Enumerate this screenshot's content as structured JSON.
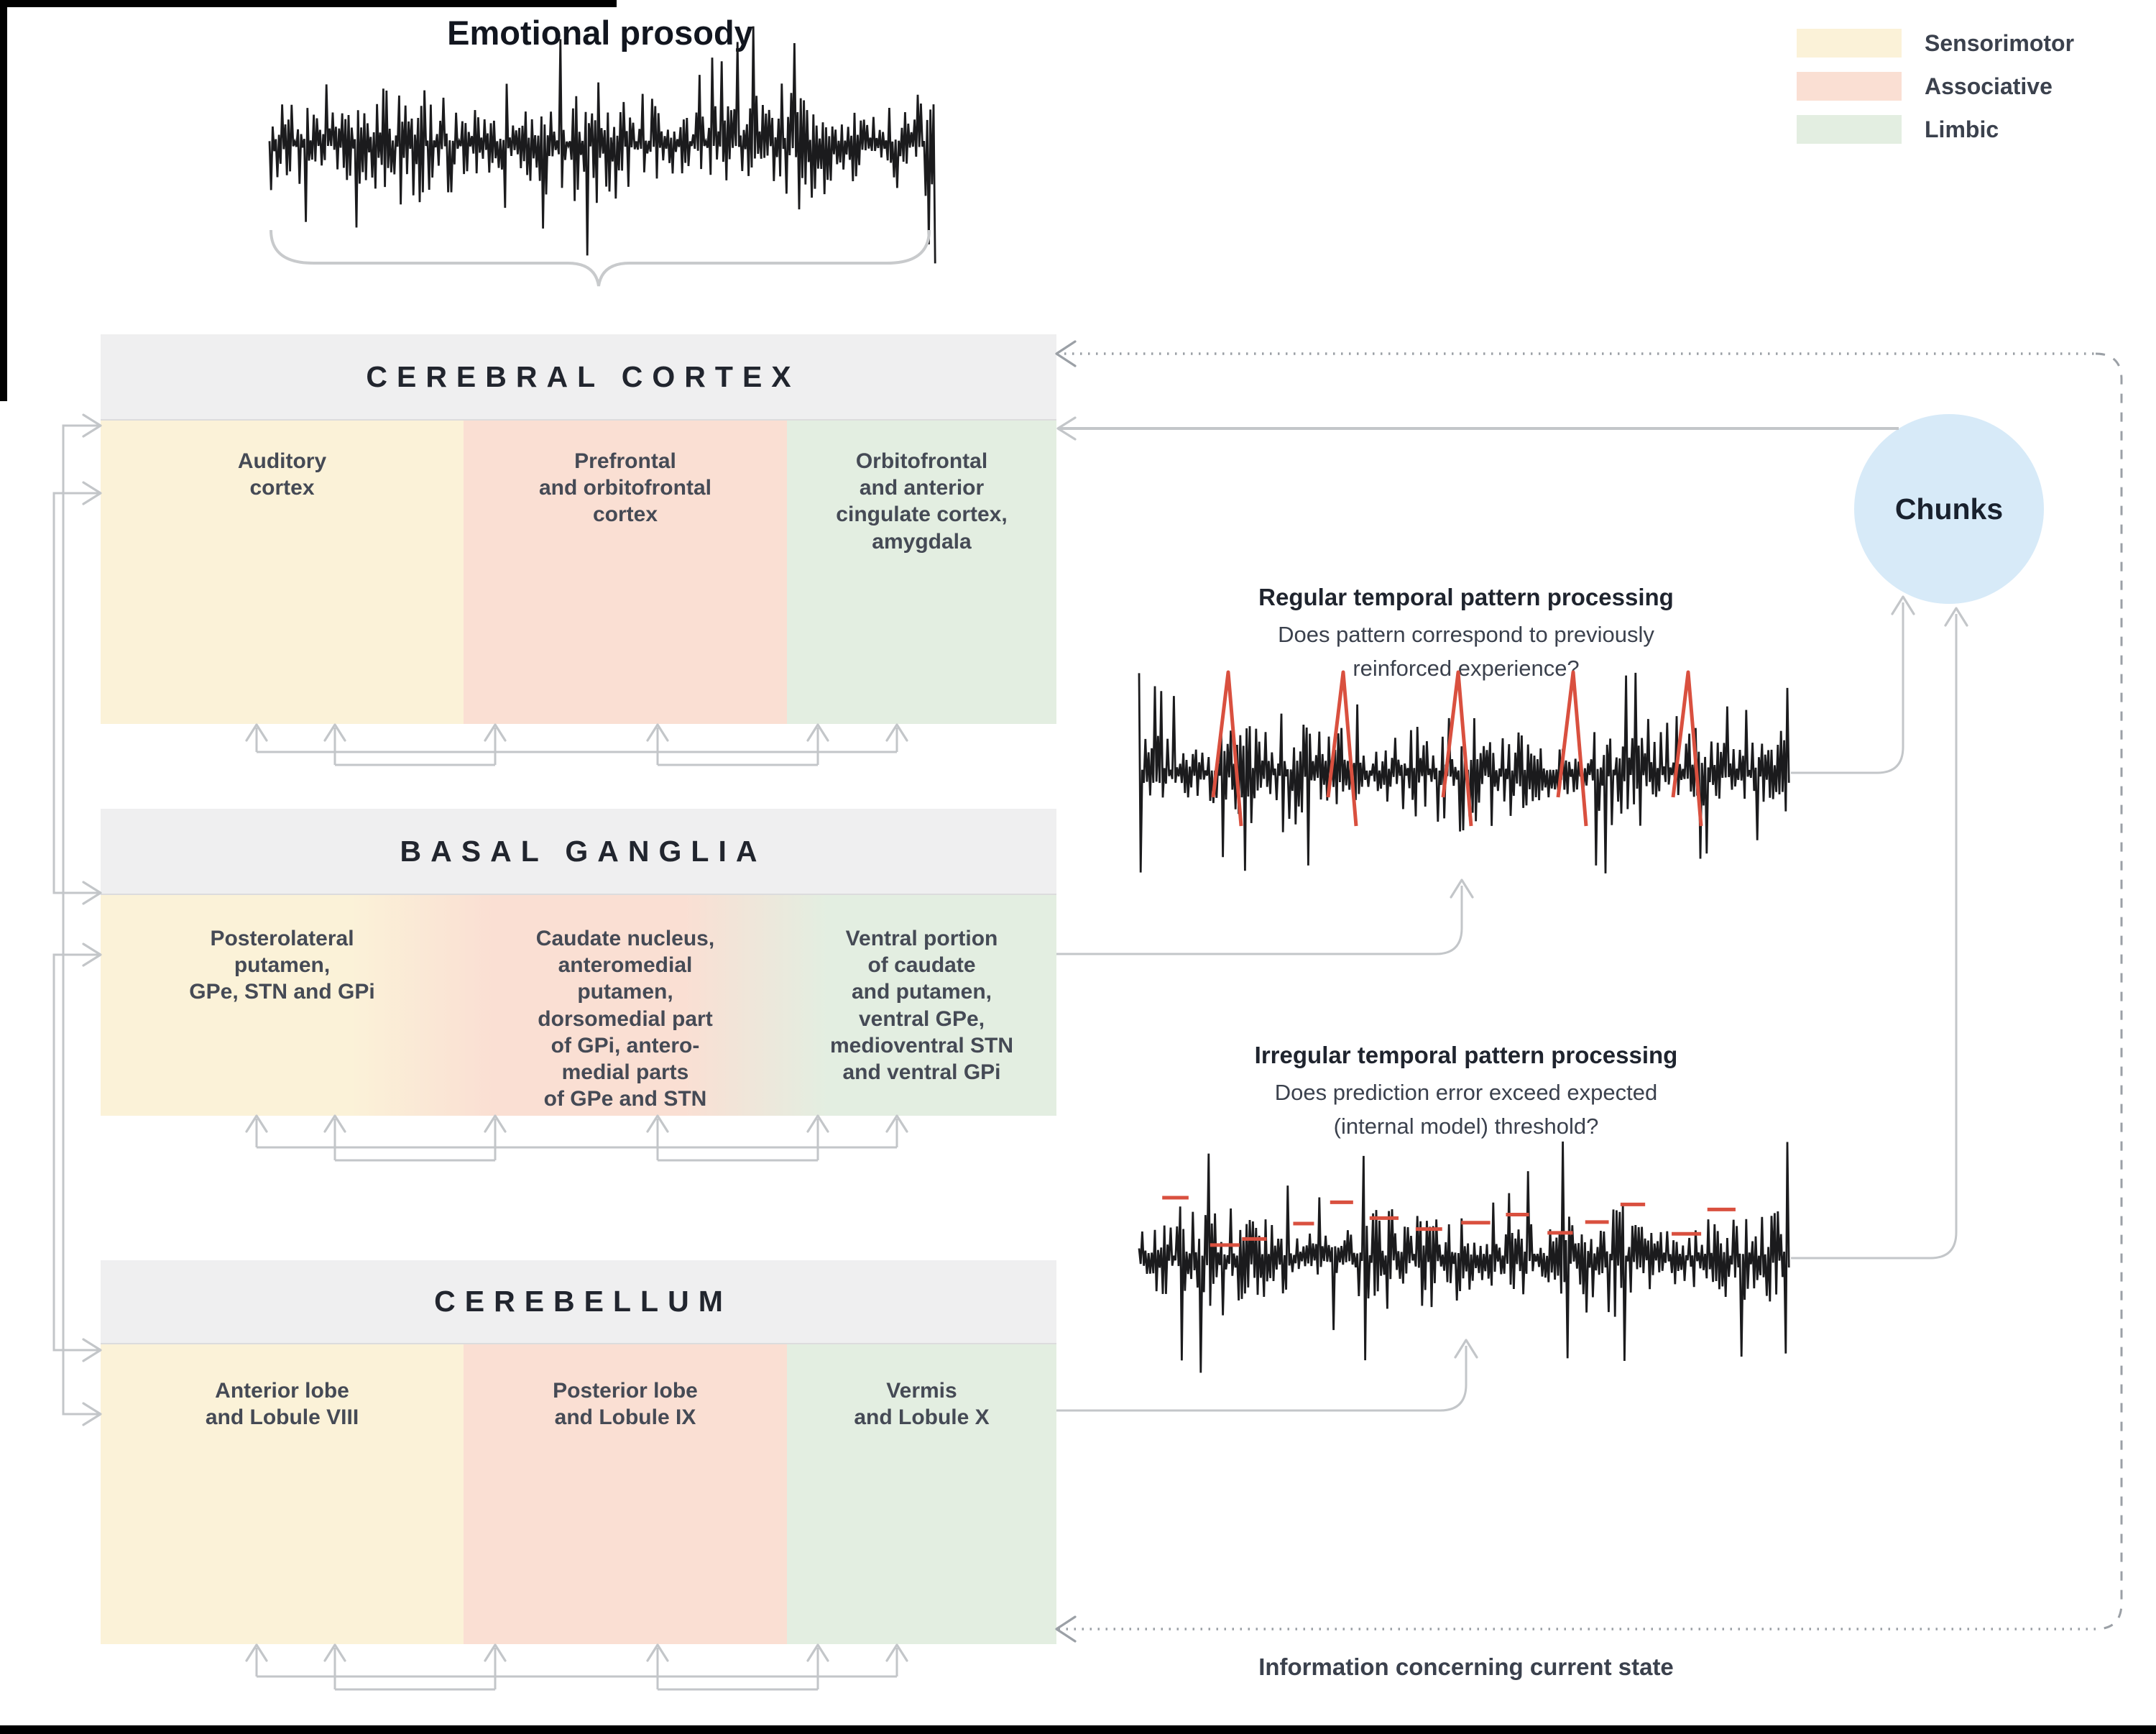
{
  "input": {
    "title": "Emotional prosody"
  },
  "legend": {
    "items": [
      {
        "label": "Sensorimotor",
        "zone": "sensorimotor"
      },
      {
        "label": "Associative",
        "zone": "associative"
      },
      {
        "label": "Limbic",
        "zone": "limbic"
      }
    ]
  },
  "regions": [
    {
      "title": "CEREBRAL CORTEX",
      "zones": [
        "sensorimotor",
        "associative",
        "limbic"
      ],
      "columns": [
        "Auditory\ncortex",
        "Prefrontal\nand orbitofrontal\ncortex",
        "Orbitofrontal\nand anterior\ncingulate cortex,\namygdala"
      ]
    },
    {
      "title": "BASAL GANGLIA",
      "zones": [
        "sensorimotor",
        "associative",
        "limbic"
      ],
      "columns": [
        "Posterolateral\nputamen,\nGPe, STN and GPi",
        "Caudate nucleus,\nanteromedial\nputamen,\ndorsomedial part\nof GPi, antero-\nmedial parts\nof GPe and STN",
        "Ventral portion\nof caudate\nand putamen,\nventral GPe,\nmedioventral STN\nand ventral GPi"
      ]
    },
    {
      "title": "CEREBELLUM",
      "zones": [
        "sensorimotor",
        "associative",
        "limbic"
      ],
      "columns": [
        "Anterior lobe\nand Lobule VIII",
        "Posterior lobe\nand Lobule IX",
        "Vermis\nand Lobule X"
      ]
    }
  ],
  "processing": {
    "regular": {
      "title": "Regular temporal pattern processing",
      "question": "Does pattern correspond to previously\nreinforced experience?"
    },
    "irregular": {
      "title": "Irregular temporal pattern processing",
      "question": "Does prediction error exceed expected\n(internal model) threshold?"
    }
  },
  "chunks": {
    "label": "Chunks"
  },
  "feedback": {
    "label": "Information concerning current state"
  },
  "waveforms": {
    "input": {
      "name": "emotional-prosody-waveform"
    },
    "regular": {
      "name": "regular-pattern-waveform",
      "red_spike_count": 5
    },
    "irregular": {
      "name": "irregular-pattern-waveform",
      "red_tick_count": 14
    }
  },
  "colors": {
    "sensorimotor": "#FBF2D8",
    "associative": "#FADFD3",
    "limbic": "#E3EEE1",
    "header_bg": "#EFEFF0",
    "chunks": "#D7EAF8",
    "line": "#C3C6C9",
    "dash": "#9BA0A6",
    "waveform": "#1B1B1D",
    "accent_red": "#D9503F",
    "text_dark": "#21252E",
    "text_body": "#454A55",
    "black_bar": "#000000"
  }
}
